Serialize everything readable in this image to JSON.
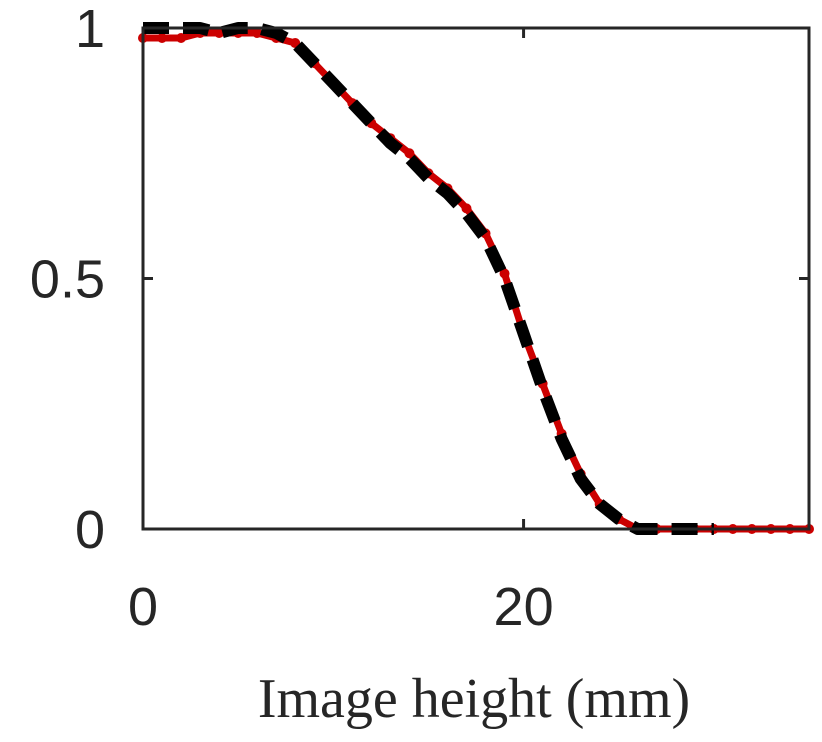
{
  "chart_data": {
    "type": "line",
    "title": "",
    "xlabel": "Image height (mm)",
    "ylabel": "",
    "xlim": [
      0,
      35
    ],
    "ylim": [
      0,
      1
    ],
    "x_ticks": [
      0,
      20
    ],
    "x_tick_labels": [
      "0",
      "20"
    ],
    "y_ticks": [
      0,
      0.5,
      1
    ],
    "y_tick_labels": [
      "0",
      "0.5",
      "1"
    ],
    "grid": false,
    "legend": "none",
    "series": [
      {
        "color": "#cc0000",
        "style": "solid-dotted",
        "x": [
          0,
          1,
          2,
          3,
          4,
          5,
          6,
          7,
          8,
          9,
          10,
          11,
          12,
          13,
          14,
          15,
          16,
          17,
          18,
          19,
          20,
          21,
          22,
          23,
          24,
          25,
          26,
          27,
          28,
          29,
          30,
          31,
          32,
          33,
          34,
          35
        ],
        "y": [
          0.98,
          0.98,
          0.98,
          0.99,
          0.99,
          0.99,
          0.99,
          0.98,
          0.97,
          0.93,
          0.89,
          0.85,
          0.81,
          0.78,
          0.75,
          0.71,
          0.68,
          0.64,
          0.59,
          0.51,
          0.39,
          0.29,
          0.19,
          0.11,
          0.05,
          0.02,
          0.0,
          0.0,
          0.0,
          0.0,
          0.0,
          0.0,
          0.0,
          0.0,
          0.0,
          0.0
        ]
      },
      {
        "color": "#000000",
        "style": "dashed",
        "x": [
          0,
          1,
          2,
          3,
          4,
          5,
          6,
          7,
          8,
          9,
          10,
          11,
          12,
          13,
          14,
          15,
          16,
          17,
          18,
          19,
          20,
          21,
          22,
          23,
          24,
          25,
          26,
          27,
          28,
          29,
          30
        ],
        "y": [
          1.0,
          1.0,
          1.0,
          1.0,
          0.99,
          1.0,
          1.0,
          0.99,
          0.97,
          0.93,
          0.89,
          0.85,
          0.81,
          0.77,
          0.74,
          0.7,
          0.67,
          0.63,
          0.58,
          0.5,
          0.39,
          0.28,
          0.18,
          0.1,
          0.05,
          0.02,
          0.0,
          0.0,
          0.0,
          0.0,
          0.0
        ]
      }
    ]
  }
}
